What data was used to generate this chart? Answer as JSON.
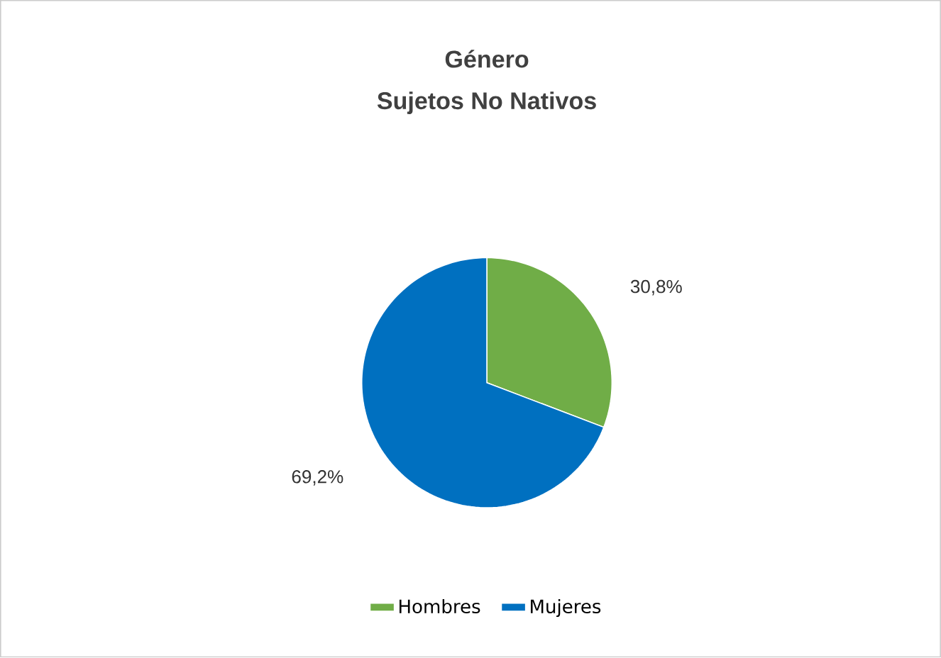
{
  "chart_data": {
    "type": "pie",
    "title": "Género",
    "subtitle": "Sujetos No Nativos",
    "categories": [
      "Hombres",
      "Mujeres"
    ],
    "values": [
      30.8,
      69.2
    ],
    "colors": [
      "#70ad47",
      "#0070c0"
    ],
    "value_labels": [
      "30,8%",
      "69,2%"
    ],
    "legend": "bottom"
  }
}
